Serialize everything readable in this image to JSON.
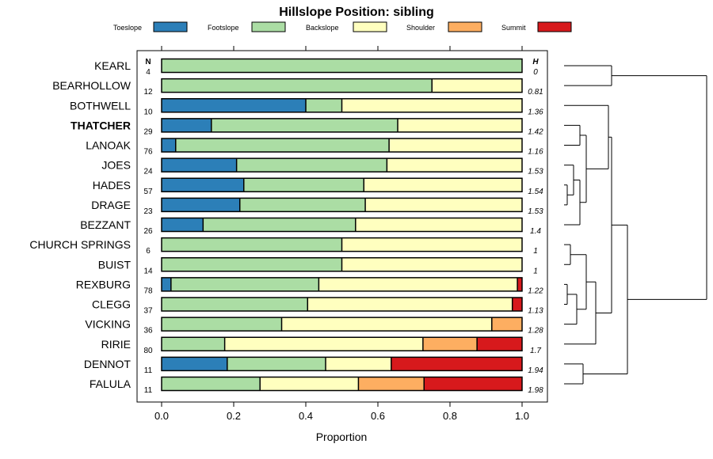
{
  "chart_data": {
    "type": "stacked-bar-horizontal",
    "title": "Hillslope Position: sibling",
    "xlabel": "Proportion",
    "xlim": [
      0,
      1
    ],
    "xticks": [
      "0.0",
      "0.2",
      "0.4",
      "0.6",
      "0.8",
      "1.0"
    ],
    "n_header": "N",
    "h_header": "H",
    "legend": {
      "position": "top",
      "entries": [
        {
          "name": "Toeslope",
          "color": "#2c7fb8"
        },
        {
          "name": "Footslope",
          "color": "#abdda4"
        },
        {
          "name": "Backslope",
          "color": "#ffffbf"
        },
        {
          "name": "Shoulder",
          "color": "#fdae61"
        },
        {
          "name": "Summit",
          "color": "#d7191c"
        }
      ]
    },
    "categories": [
      {
        "name": "KEARL",
        "n": "4",
        "h": "0",
        "bold": false,
        "values": [
          0,
          1,
          0,
          0,
          0
        ]
      },
      {
        "name": "BEARHOLLOW",
        "n": "12",
        "h": "0.81",
        "bold": false,
        "values": [
          0,
          0.75,
          0.25,
          0,
          0
        ]
      },
      {
        "name": "BOTHWELL",
        "n": "10",
        "h": "1.36",
        "bold": false,
        "values": [
          0.4,
          0.1,
          0.5,
          0,
          0
        ]
      },
      {
        "name": "THATCHER",
        "n": "29",
        "h": "1.42",
        "bold": true,
        "values": [
          0.138,
          0.517,
          0.345,
          0,
          0
        ]
      },
      {
        "name": "LANOAK",
        "n": "76",
        "h": "1.16",
        "bold": false,
        "values": [
          0.039,
          0.592,
          0.369,
          0,
          0
        ]
      },
      {
        "name": "JOES",
        "n": "24",
        "h": "1.53",
        "bold": false,
        "values": [
          0.208,
          0.417,
          0.375,
          0,
          0
        ]
      },
      {
        "name": "HADES",
        "n": "57",
        "h": "1.54",
        "bold": false,
        "values": [
          0.228,
          0.333,
          0.439,
          0,
          0
        ]
      },
      {
        "name": "DRAGE",
        "n": "23",
        "h": "1.53",
        "bold": false,
        "values": [
          0.217,
          0.348,
          0.435,
          0,
          0
        ]
      },
      {
        "name": "BEZZANT",
        "n": "26",
        "h": "1.4",
        "bold": false,
        "values": [
          0.115,
          0.423,
          0.462,
          0,
          0
        ]
      },
      {
        "name": "CHURCH SPRINGS",
        "n": "6",
        "h": "1",
        "bold": false,
        "values": [
          0,
          0.5,
          0.5,
          0,
          0
        ]
      },
      {
        "name": "BUIST",
        "n": "14",
        "h": "1",
        "bold": false,
        "values": [
          0,
          0.5,
          0.5,
          0,
          0
        ]
      },
      {
        "name": "REXBURG",
        "n": "78",
        "h": "1.22",
        "bold": false,
        "values": [
          0.026,
          0.41,
          0.551,
          0,
          0.013
        ]
      },
      {
        "name": "CLEGG",
        "n": "37",
        "h": "1.13",
        "bold": false,
        "values": [
          0,
          0.405,
          0.568,
          0,
          0.027
        ]
      },
      {
        "name": "VICKING",
        "n": "36",
        "h": "1.28",
        "bold": false,
        "values": [
          0,
          0.333,
          0.583,
          0.084,
          0
        ]
      },
      {
        "name": "RIRIE",
        "n": "80",
        "h": "1.7",
        "bold": false,
        "values": [
          0,
          0.175,
          0.55,
          0.15,
          0.125
        ]
      },
      {
        "name": "DENNOT",
        "n": "11",
        "h": "1.94",
        "bold": false,
        "values": [
          0.182,
          0.273,
          0.182,
          0,
          0.363
        ]
      },
      {
        "name": "FALULA",
        "n": "11",
        "h": "1.98",
        "bold": false,
        "values": [
          0,
          0.273,
          0.273,
          0.182,
          0.272
        ]
      }
    ],
    "dendrogram": {
      "side": "right",
      "merges": [
        {
          "left": "KEARL",
          "right": "BEARHOLLOW",
          "height": 0.15
        },
        {
          "left": "LANOAK",
          "right": "THATCHER",
          "height": 0.05
        },
        {
          "left": "HADES",
          "right": "DRAGE",
          "height": 0.01
        },
        {
          "left": "c3",
          "right": "JOES",
          "height": 0.03
        },
        {
          "left": "c4",
          "right": "BEZZANT",
          "height": 0.05
        },
        {
          "left": "c2",
          "right": "c5",
          "height": 0.07
        },
        {
          "left": "BOTHWELL",
          "right": "c6",
          "height": 0.14
        },
        {
          "left": "CHURCH SPRINGS",
          "right": "BUIST",
          "height": 0.02
        },
        {
          "left": "REXBURG",
          "right": "CLEGG",
          "height": 0.01
        },
        {
          "left": "c9",
          "right": "VICKING",
          "height": 0.04
        },
        {
          "left": "c8",
          "right": "c10",
          "height": 0.07
        },
        {
          "left": "c11",
          "right": "RIRIE",
          "height": 0.1
        },
        {
          "left": "c7",
          "right": "c12",
          "height": 0.15
        },
        {
          "left": "DENNOT",
          "right": "FALULA",
          "height": 0.06
        },
        {
          "left": "c13",
          "right": "c14",
          "height": 0.2
        },
        {
          "left": "c1",
          "right": "c15",
          "height": 0.45
        }
      ]
    }
  }
}
